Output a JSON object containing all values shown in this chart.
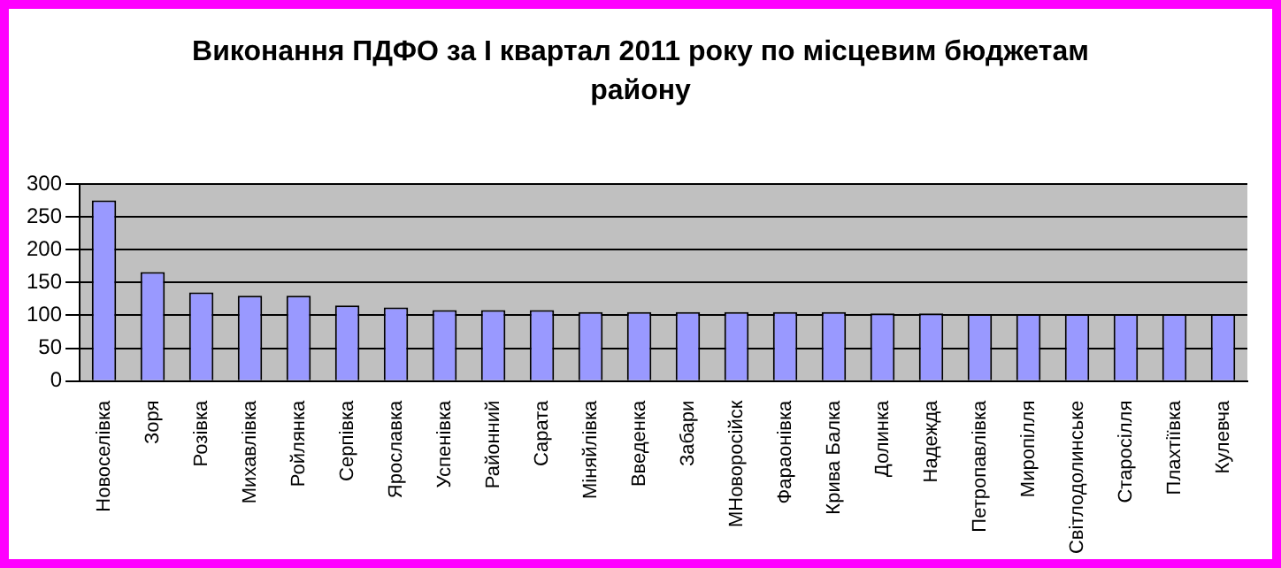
{
  "chart_data": {
    "type": "bar",
    "title": "Виконання ПДФО за І квартал  2011 року по місцевим бюджетам району",
    "categories": [
      "Новоселівка",
      "Зоря",
      "Розівка",
      "Михавлівка",
      "Ройлянка",
      "Серпівка",
      "Ярославка",
      "Успенівка",
      "Районний",
      "Сарата",
      "Міняйлівка",
      "Введенка",
      "Забари",
      "МНоворосійск",
      "Фараонівка",
      "Крива Балка",
      "Долинка",
      "Надежда",
      "Петропавлівка",
      "Миропілля",
      "Світлодолинське",
      "Старосілля",
      "Плахтіївка",
      "Кулевча"
    ],
    "values": [
      275,
      166,
      135,
      130,
      130,
      115,
      112,
      108,
      108,
      108,
      105,
      105,
      105,
      105,
      105,
      105,
      103,
      103,
      102,
      102,
      102,
      102,
      102,
      102
    ],
    "color": "#9999ff",
    "ylim": [
      0,
      300
    ],
    "yticks": [
      0,
      50,
      100,
      150,
      200,
      250,
      300
    ],
    "grid": "y"
  }
}
